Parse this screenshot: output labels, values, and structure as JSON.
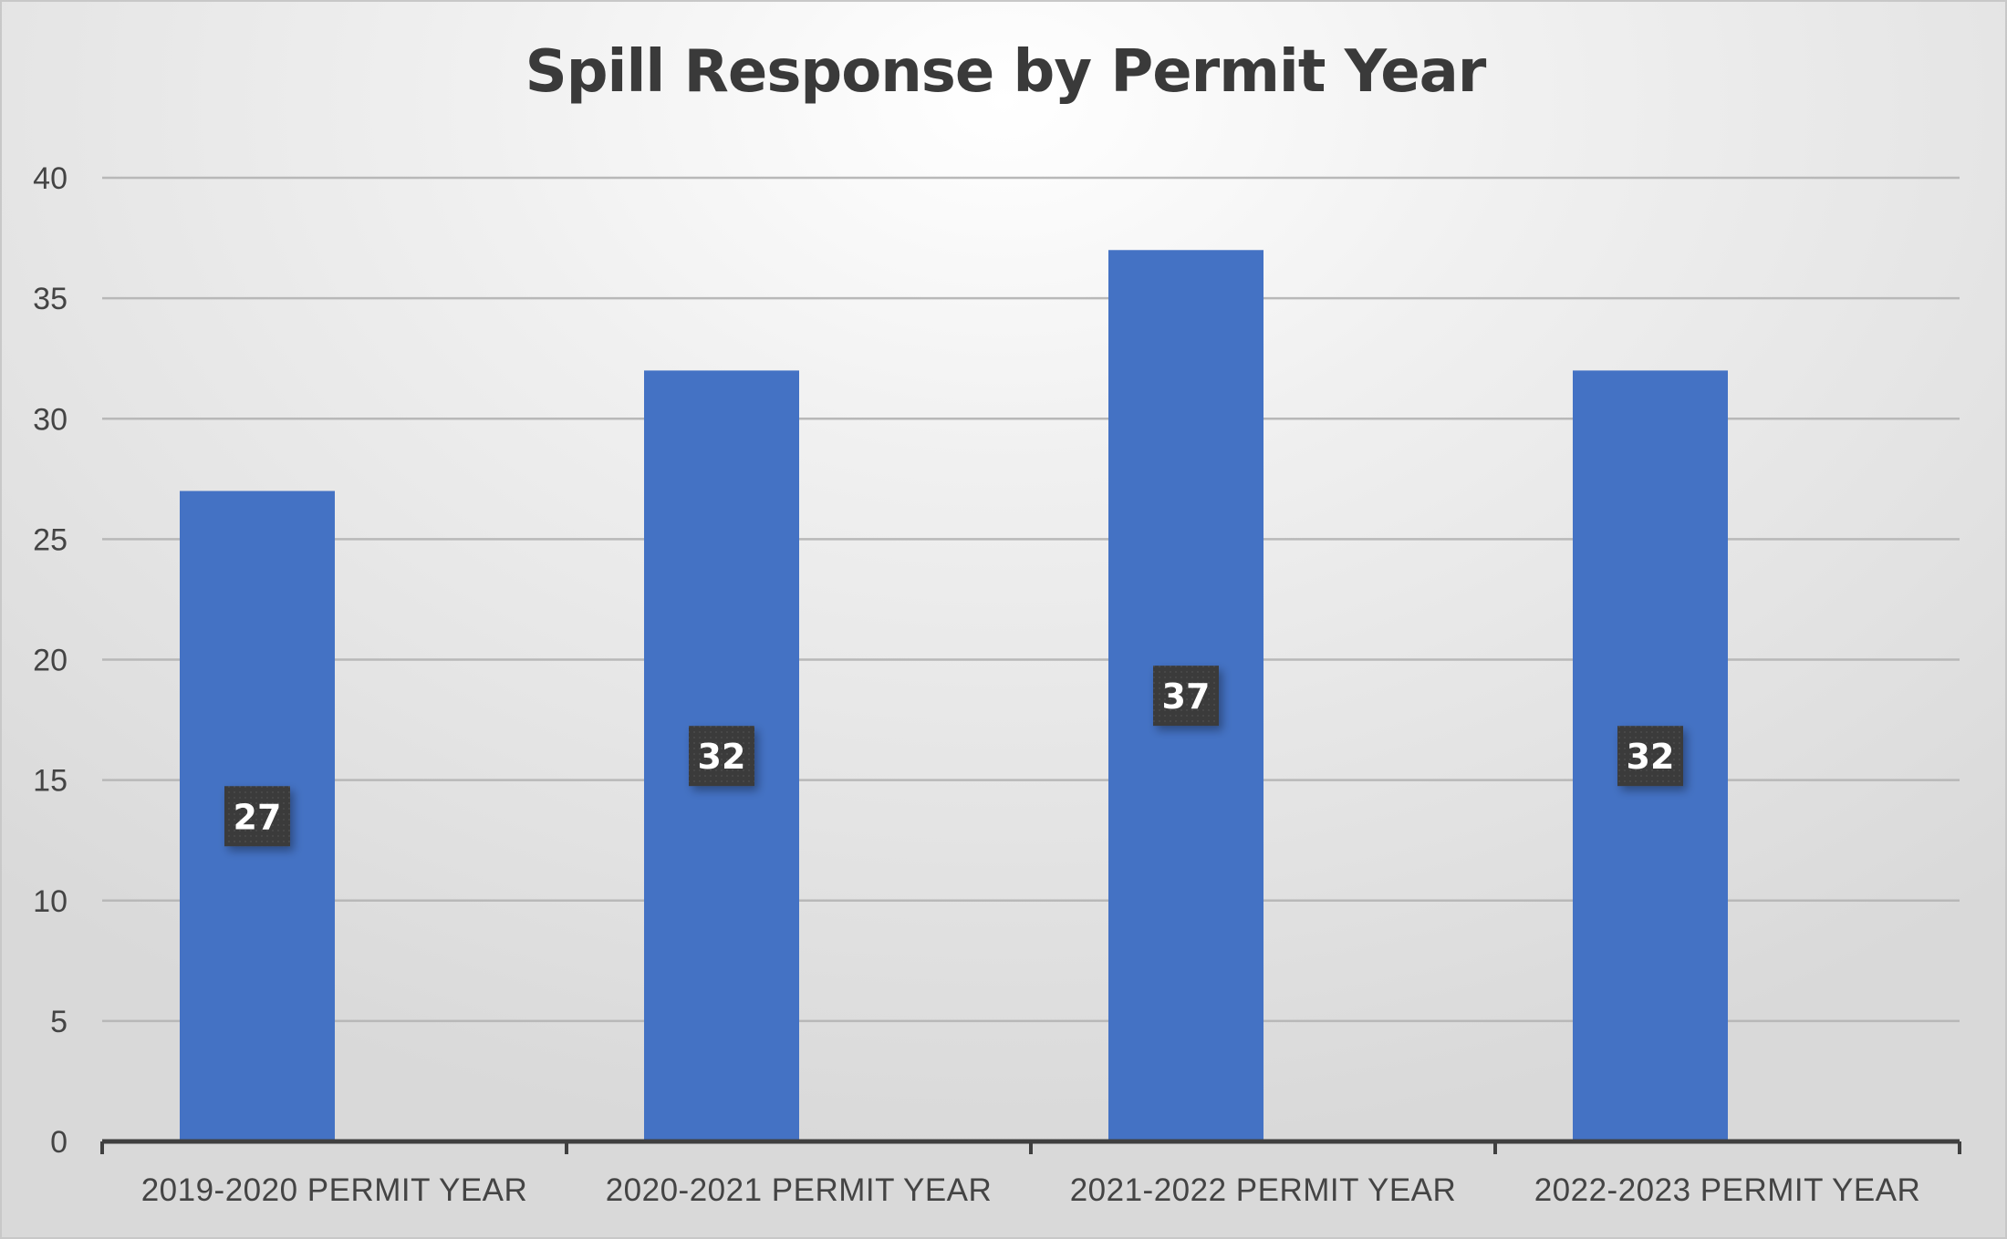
{
  "chart_data": {
    "type": "bar",
    "title": "Spill Response by Permit Year",
    "categories": [
      "2019-2020 PERMIT YEAR",
      "2020-2021 PERMIT YEAR",
      "2021-2022 PERMIT YEAR",
      "2022-2023 PERMIT YEAR"
    ],
    "values": [
      27,
      32,
      37,
      32
    ],
    "data_labels": [
      "27",
      "32",
      "37",
      "32"
    ],
    "ylim": [
      0,
      40
    ],
    "yticks": [
      "0",
      "5",
      "10",
      "15",
      "20",
      "25",
      "30",
      "35",
      "40"
    ],
    "xlabel": "",
    "ylabel": "",
    "grid": true,
    "legend": "none",
    "colors": {
      "bar": "#4472C4",
      "label_box": "#3b3b3b",
      "gridline": "#b8b8b8",
      "axis": "#404040"
    }
  }
}
